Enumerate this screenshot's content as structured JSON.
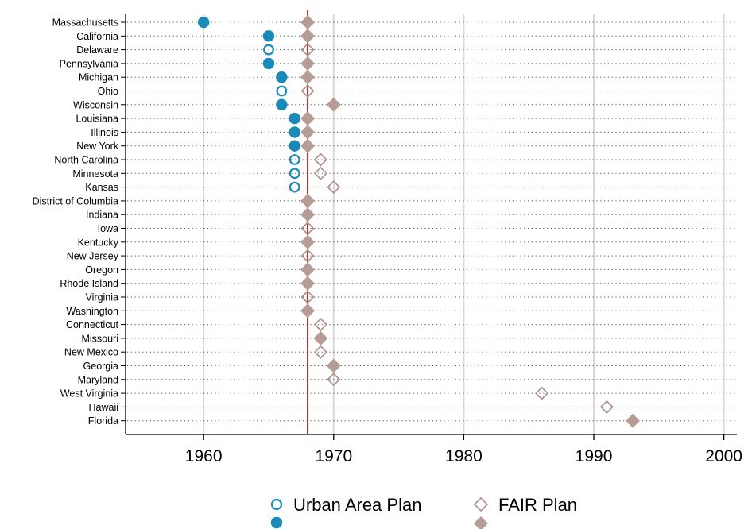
{
  "chart_data": {
    "type": "scatter",
    "title": "",
    "xlabel": "",
    "ylabel": "",
    "xlim": [
      1954,
      2001
    ],
    "x_ticks": [
      1960,
      1970,
      1980,
      1990,
      2000
    ],
    "reference_line": {
      "x": 1968,
      "color": "#e31a1c"
    },
    "grid": true,
    "legend_position": "bottom",
    "colors": {
      "urban": "#1a8ab8",
      "fair": "#b79c96",
      "fair_stroke": "#b09690",
      "grid": "#d9d9d9"
    },
    "categories": [
      "Massachusetts",
      "California",
      "Delaware",
      "Pennsylvania",
      "Michigan",
      "Ohio",
      "Wisconsin",
      "Louisiana",
      "Illinois",
      "New York",
      "North Carolina",
      "Minnesota",
      "Kansas",
      "District of Columbia",
      "Indiana",
      "Iowa",
      "Kentucky",
      "New Jersey",
      "Oregon",
      "Rhode Island",
      "Virginia",
      "Washington",
      "Connecticut",
      "Missouri",
      "New Mexico",
      "Georgia",
      "Maryland",
      "West Virginia",
      "Hawaii",
      "Florida"
    ],
    "series": [
      {
        "name": "Urban Area Plan",
        "marker": "circle",
        "points": [
          {
            "state": "Massachusetts",
            "x": 1960,
            "filled": true
          },
          {
            "state": "California",
            "x": 1965,
            "filled": true
          },
          {
            "state": "Delaware",
            "x": 1965,
            "filled": false
          },
          {
            "state": "Pennsylvania",
            "x": 1965,
            "filled": true
          },
          {
            "state": "Michigan",
            "x": 1966,
            "filled": true
          },
          {
            "state": "Ohio",
            "x": 1966,
            "filled": false
          },
          {
            "state": "Wisconsin",
            "x": 1966,
            "filled": true
          },
          {
            "state": "Louisiana",
            "x": 1967,
            "filled": true
          },
          {
            "state": "Illinois",
            "x": 1967,
            "filled": true
          },
          {
            "state": "New York",
            "x": 1967,
            "filled": true
          },
          {
            "state": "North Carolina",
            "x": 1967,
            "filled": false
          },
          {
            "state": "Minnesota",
            "x": 1967,
            "filled": false
          },
          {
            "state": "Kansas",
            "x": 1967,
            "filled": false
          }
        ]
      },
      {
        "name": "FAIR Plan",
        "marker": "diamond",
        "points": [
          {
            "state": "Massachusetts",
            "x": 1968,
            "filled": true
          },
          {
            "state": "California",
            "x": 1968,
            "filled": true
          },
          {
            "state": "Delaware",
            "x": 1968,
            "filled": false
          },
          {
            "state": "Pennsylvania",
            "x": 1968,
            "filled": true
          },
          {
            "state": "Michigan",
            "x": 1968,
            "filled": true
          },
          {
            "state": "Ohio",
            "x": 1968,
            "filled": false
          },
          {
            "state": "Wisconsin",
            "x": 1970,
            "filled": true
          },
          {
            "state": "Louisiana",
            "x": 1968,
            "filled": true
          },
          {
            "state": "Illinois",
            "x": 1968,
            "filled": true
          },
          {
            "state": "New York",
            "x": 1968,
            "filled": true
          },
          {
            "state": "North Carolina",
            "x": 1969,
            "filled": false
          },
          {
            "state": "Minnesota",
            "x": 1969,
            "filled": false
          },
          {
            "state": "Kansas",
            "x": 1970,
            "filled": false
          },
          {
            "state": "District of Columbia",
            "x": 1968,
            "filled": true
          },
          {
            "state": "Indiana",
            "x": 1968,
            "filled": true
          },
          {
            "state": "Iowa",
            "x": 1968,
            "filled": false
          },
          {
            "state": "Kentucky",
            "x": 1968,
            "filled": true
          },
          {
            "state": "New Jersey",
            "x": 1968,
            "filled": false
          },
          {
            "state": "Oregon",
            "x": 1968,
            "filled": true
          },
          {
            "state": "Rhode Island",
            "x": 1968,
            "filled": true
          },
          {
            "state": "Virginia",
            "x": 1968,
            "filled": false
          },
          {
            "state": "Washington",
            "x": 1968,
            "filled": true
          },
          {
            "state": "Connecticut",
            "x": 1969,
            "filled": false
          },
          {
            "state": "Missouri",
            "x": 1969,
            "filled": true
          },
          {
            "state": "New Mexico",
            "x": 1969,
            "filled": false
          },
          {
            "state": "Georgia",
            "x": 1970,
            "filled": true
          },
          {
            "state": "Maryland",
            "x": 1970,
            "filled": false
          },
          {
            "state": "West Virginia",
            "x": 1986,
            "filled": false
          },
          {
            "state": "Hawaii",
            "x": 1991,
            "filled": false
          },
          {
            "state": "Florida",
            "x": 1993,
            "filled": true
          }
        ]
      }
    ],
    "legend": [
      {
        "label": "Urban Area Plan",
        "series": "Urban Area Plan"
      },
      {
        "label": "FAIR Plan",
        "series": "FAIR Plan"
      }
    ]
  }
}
